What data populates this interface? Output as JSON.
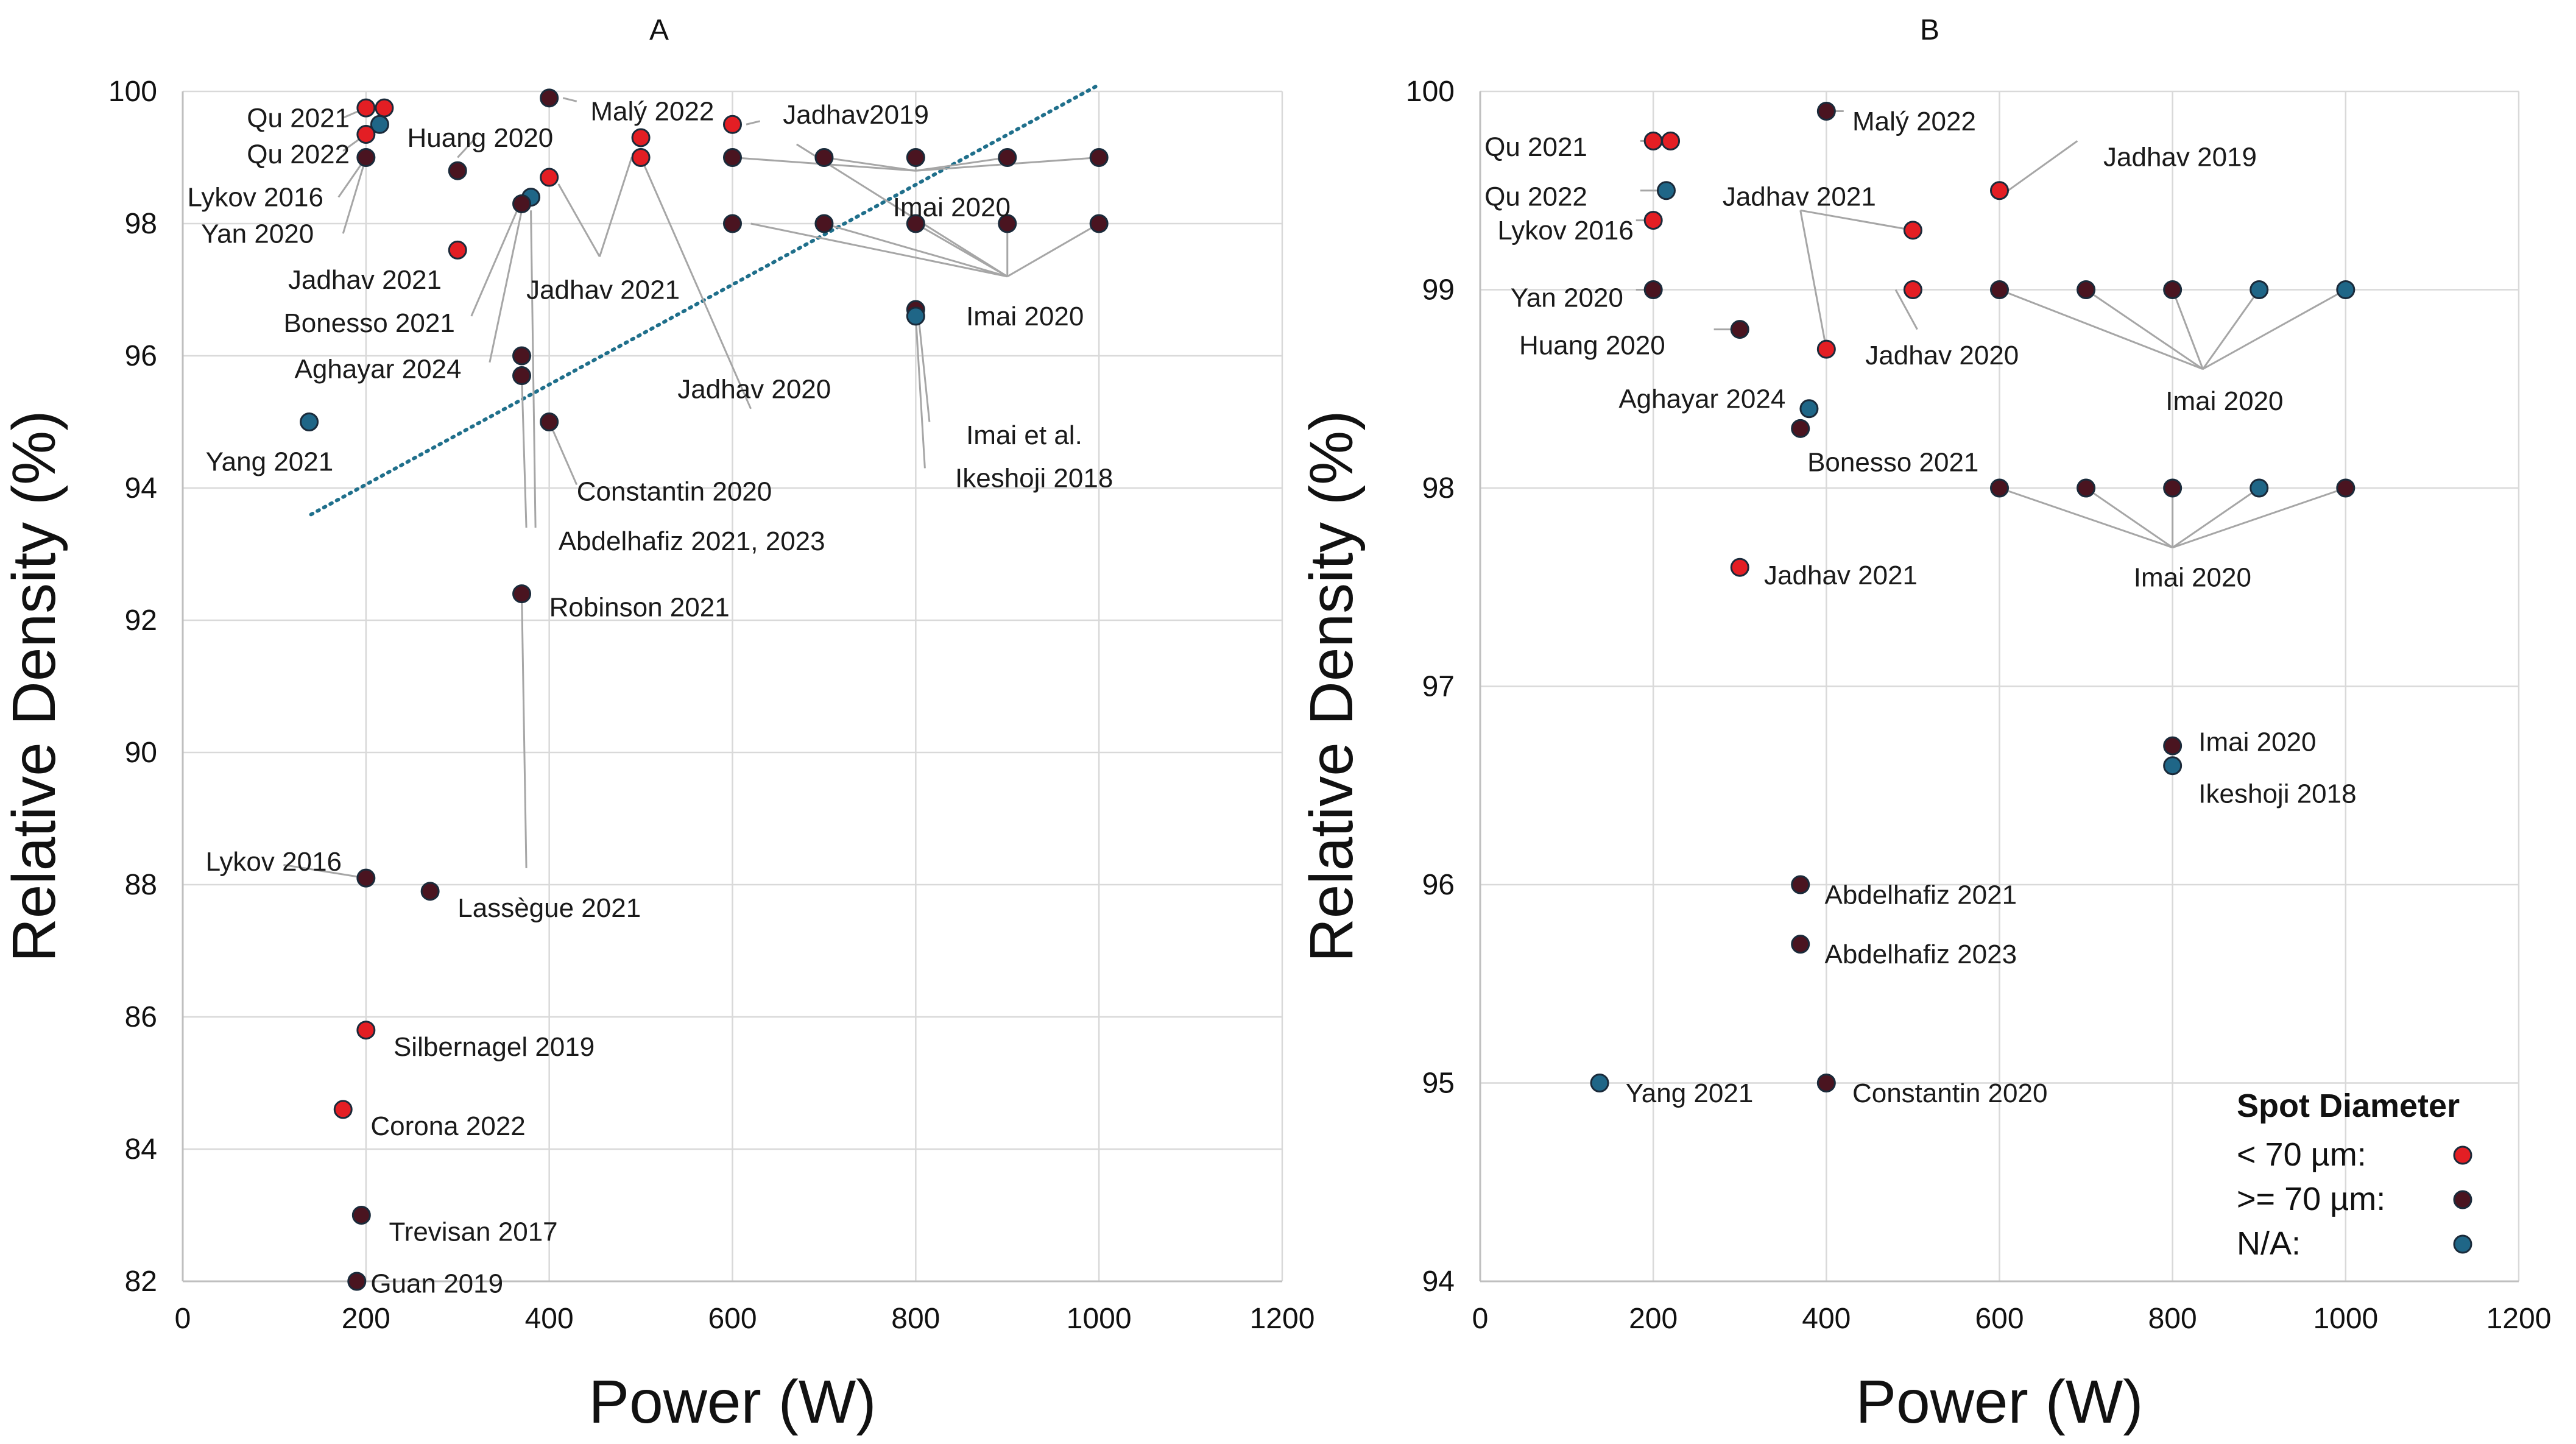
{
  "chart_data": [
    {
      "panel": "A",
      "type": "scatter",
      "title": "A",
      "xlabel": "Power (W)",
      "ylabel": "Relative Density (%)",
      "xlim": [
        0,
        1200
      ],
      "ylim": [
        82,
        100
      ],
      "xticks": [
        "0",
        "200",
        "400",
        "600",
        "800",
        "1000",
        "1200"
      ],
      "yticks": [
        "82",
        "84",
        "86",
        "88",
        "90",
        "92",
        "94",
        "96",
        "98",
        "100"
      ],
      "grid": true,
      "trendline": {
        "style": "dotted",
        "color": "#1f6f8b",
        "x": [
          140,
          1000
        ],
        "y": [
          93.6,
          100.1
        ]
      },
      "points": [
        {
          "x": 200,
          "y": 99.75,
          "cat": "lt70"
        },
        {
          "x": 220,
          "y": 99.75,
          "cat": "lt70"
        },
        {
          "x": 215,
          "y": 99.5,
          "cat": "na"
        },
        {
          "x": 200,
          "y": 99.35,
          "cat": "lt70"
        },
        {
          "x": 200,
          "y": 99.0,
          "cat": "ge70"
        },
        {
          "x": 300,
          "y": 98.8,
          "cat": "ge70"
        },
        {
          "x": 400,
          "y": 99.9,
          "cat": "ge70"
        },
        {
          "x": 500,
          "y": 99.3,
          "cat": "lt70"
        },
        {
          "x": 500,
          "y": 99.0,
          "cat": "lt70"
        },
        {
          "x": 600,
          "y": 99.5,
          "cat": "lt70"
        },
        {
          "x": 600,
          "y": 99.0,
          "cat": "ge70"
        },
        {
          "x": 700,
          "y": 99.0,
          "cat": "ge70"
        },
        {
          "x": 800,
          "y": 99.0,
          "cat": "ge70"
        },
        {
          "x": 900,
          "y": 99.0,
          "cat": "ge70"
        },
        {
          "x": 1000,
          "y": 99.0,
          "cat": "ge70"
        },
        {
          "x": 600,
          "y": 98.0,
          "cat": "ge70"
        },
        {
          "x": 700,
          "y": 98.0,
          "cat": "ge70"
        },
        {
          "x": 800,
          "y": 98.0,
          "cat": "ge70"
        },
        {
          "x": 900,
          "y": 98.0,
          "cat": "ge70"
        },
        {
          "x": 1000,
          "y": 98.0,
          "cat": "ge70"
        },
        {
          "x": 400,
          "y": 98.7,
          "cat": "lt70"
        },
        {
          "x": 380,
          "y": 98.4,
          "cat": "na"
        },
        {
          "x": 370,
          "y": 98.3,
          "cat": "ge70"
        },
        {
          "x": 300,
          "y": 97.6,
          "cat": "lt70"
        },
        {
          "x": 800,
          "y": 96.7,
          "cat": "ge70"
        },
        {
          "x": 800,
          "y": 96.6,
          "cat": "na"
        },
        {
          "x": 370,
          "y": 96.0,
          "cat": "ge70"
        },
        {
          "x": 370,
          "y": 95.7,
          "cat": "ge70"
        },
        {
          "x": 400,
          "y": 95.0,
          "cat": "ge70"
        },
        {
          "x": 138,
          "y": 95.0,
          "cat": "na"
        },
        {
          "x": 370,
          "y": 92.4,
          "cat": "ge70"
        },
        {
          "x": 200,
          "y": 88.1,
          "cat": "ge70"
        },
        {
          "x": 270,
          "y": 87.9,
          "cat": "ge70"
        },
        {
          "x": 200,
          "y": 85.8,
          "cat": "lt70"
        },
        {
          "x": 175,
          "y": 84.6,
          "cat": "lt70"
        },
        {
          "x": 195,
          "y": 83.0,
          "cat": "ge70"
        },
        {
          "x": 190,
          "y": 82.0,
          "cat": "ge70"
        }
      ],
      "annotations": [
        {
          "text": "Qu 2021",
          "x": 70,
          "y": 99.6
        },
        {
          "text": "Qu 2022",
          "x": 70,
          "y": 99.05
        },
        {
          "text": "Lykov 2016",
          "x": 5,
          "y": 98.4
        },
        {
          "text": "Yan 2020",
          "x": 20,
          "y": 97.85
        },
        {
          "text": "Huang 2020",
          "x": 245,
          "y": 99.3
        },
        {
          "text": "Malý 2022",
          "x": 445,
          "y": 99.7
        },
        {
          "text": "Jadhav2019",
          "x": 655,
          "y": 99.65
        },
        {
          "text": "Imai 2020",
          "x": 775,
          "y": 98.25
        },
        {
          "text": "Jadhav 2021",
          "x": 115,
          "y": 97.15
        },
        {
          "text": "Jadhav 2021",
          "x": 375,
          "y": 97.0
        },
        {
          "text": "Bonesso 2021",
          "x": 110,
          "y": 96.5
        },
        {
          "text": "Imai 2020",
          "x": 855,
          "y": 96.6
        },
        {
          "text": "Aghayar 2024",
          "x": 122,
          "y": 95.8
        },
        {
          "text": "Jadhav 2020",
          "x": 540,
          "y": 95.5
        },
        {
          "text": "Yang 2021",
          "x": 25,
          "y": 94.4
        },
        {
          "text": "Imai et al.",
          "x": 855,
          "y": 94.8
        },
        {
          "text": "Ikeshoji 2018",
          "x": 843,
          "y": 94.15
        },
        {
          "text": "Constantin 2020",
          "x": 430,
          "y": 93.95
        },
        {
          "text": "Abdelhafiz 2021, 2023",
          "x": 410,
          "y": 93.2
        },
        {
          "text": "Robinson 2021",
          "x": 400,
          "y": 92.2
        },
        {
          "text": "Lykov 2016",
          "x": 25,
          "y": 88.35
        },
        {
          "text": "Lassègue 2021",
          "x": 300,
          "y": 87.65
        },
        {
          "text": "Silbernagel 2019",
          "x": 230,
          "y": 85.55
        },
        {
          "text": "Corona 2022",
          "x": 205,
          "y": 84.35
        },
        {
          "text": "Trevisan 2017",
          "x": 225,
          "y": 82.75
        },
        {
          "text": "Guan 2019",
          "x": 205,
          "y": 81.97
        }
      ]
    },
    {
      "panel": "B",
      "type": "scatter",
      "title": "B",
      "xlabel": "Power (W)",
      "ylabel": "Relative Density (%)",
      "xlim": [
        0,
        1200
      ],
      "ylim": [
        94,
        100
      ],
      "xticks": [
        "0",
        "200",
        "400",
        "600",
        "800",
        "1000",
        "1200"
      ],
      "yticks": [
        "94",
        "95",
        "96",
        "97",
        "98",
        "99",
        "100"
      ],
      "grid": true,
      "points": [
        {
          "x": 200,
          "y": 99.75,
          "cat": "lt70"
        },
        {
          "x": 220,
          "y": 99.75,
          "cat": "lt70"
        },
        {
          "x": 400,
          "y": 99.9,
          "cat": "ge70"
        },
        {
          "x": 215,
          "y": 99.5,
          "cat": "na"
        },
        {
          "x": 600,
          "y": 99.5,
          "cat": "lt70"
        },
        {
          "x": 200,
          "y": 99.35,
          "cat": "lt70"
        },
        {
          "x": 500,
          "y": 99.3,
          "cat": "lt70"
        },
        {
          "x": 200,
          "y": 99.0,
          "cat": "ge70"
        },
        {
          "x": 500,
          "y": 99.0,
          "cat": "lt70"
        },
        {
          "x": 600,
          "y": 99.0,
          "cat": "ge70"
        },
        {
          "x": 700,
          "y": 99.0,
          "cat": "ge70"
        },
        {
          "x": 800,
          "y": 99.0,
          "cat": "ge70"
        },
        {
          "x": 900,
          "y": 99.0,
          "cat": "na"
        },
        {
          "x": 1000,
          "y": 99.0,
          "cat": "na"
        },
        {
          "x": 300,
          "y": 98.8,
          "cat": "ge70"
        },
        {
          "x": 400,
          "y": 98.7,
          "cat": "lt70"
        },
        {
          "x": 380,
          "y": 98.4,
          "cat": "na"
        },
        {
          "x": 370,
          "y": 98.3,
          "cat": "ge70"
        },
        {
          "x": 600,
          "y": 98.0,
          "cat": "ge70"
        },
        {
          "x": 700,
          "y": 98.0,
          "cat": "ge70"
        },
        {
          "x": 800,
          "y": 98.0,
          "cat": "ge70"
        },
        {
          "x": 900,
          "y": 98.0,
          "cat": "na"
        },
        {
          "x": 1000,
          "y": 98.0,
          "cat": "ge70"
        },
        {
          "x": 300,
          "y": 97.6,
          "cat": "lt70"
        },
        {
          "x": 800,
          "y": 96.7,
          "cat": "ge70"
        },
        {
          "x": 800,
          "y": 96.6,
          "cat": "na"
        },
        {
          "x": 370,
          "y": 96.0,
          "cat": "ge70"
        },
        {
          "x": 370,
          "y": 95.7,
          "cat": "ge70"
        },
        {
          "x": 138,
          "y": 95.0,
          "cat": "na"
        },
        {
          "x": 400,
          "y": 95.0,
          "cat": "ge70"
        }
      ],
      "annotations": [
        {
          "text": "Qu 2021",
          "x": 5,
          "y": 99.72
        },
        {
          "text": "Qu 2022",
          "x": 5,
          "y": 99.47
        },
        {
          "text": "Malý 2022",
          "x": 430,
          "y": 99.85
        },
        {
          "text": "Jadhav 2019",
          "x": 720,
          "y": 99.67
        },
        {
          "text": "Jadhav 2021",
          "x": 280,
          "y": 99.47
        },
        {
          "text": "Lykov 2016",
          "x": 20,
          "y": 99.3
        },
        {
          "text": "Yan 2020",
          "x": 35,
          "y": 98.96
        },
        {
          "text": "Huang 2020",
          "x": 45,
          "y": 98.72
        },
        {
          "text": "Jadhav 2020",
          "x": 445,
          "y": 98.67
        },
        {
          "text": "Aghayar 2024",
          "x": 160,
          "y": 98.45
        },
        {
          "text": "Imai 2020",
          "x": 792,
          "y": 98.44
        },
        {
          "text": "Bonesso 2021",
          "x": 378,
          "y": 98.13
        },
        {
          "text": "Imai 2020",
          "x": 755,
          "y": 97.55
        },
        {
          "text": "Jadhav 2021",
          "x": 328,
          "y": 97.56
        },
        {
          "text": "Imai 2020",
          "x": 830,
          "y": 96.72
        },
        {
          "text": "Ikeshoji 2018",
          "x": 830,
          "y": 96.46
        },
        {
          "text": "Abdelhafiz 2021",
          "x": 398,
          "y": 95.95
        },
        {
          "text": "Abdelhafiz 2023",
          "x": 398,
          "y": 95.65
        },
        {
          "text": "Yang 2021",
          "x": 168,
          "y": 94.95
        },
        {
          "text": "Constantin 2020",
          "x": 430,
          "y": 94.95
        }
      ],
      "legend": {
        "title": "Spot Diameter",
        "entries": [
          {
            "label": "< 70 µm:",
            "cat": "lt70"
          },
          {
            "label": ">= 70 µm:",
            "cat": "ge70"
          },
          {
            "label": "N/A:",
            "cat": "na"
          }
        ],
        "placement": "bottom-right"
      }
    }
  ],
  "colors": {
    "lt70": "#e31e24",
    "ge70": "#4a1420",
    "na": "#1f6687",
    "marker_edge": "#1a2a3a",
    "grid": "#d9d9d9",
    "leader": "#a6a6a6",
    "trend": "#1f6f8b"
  }
}
